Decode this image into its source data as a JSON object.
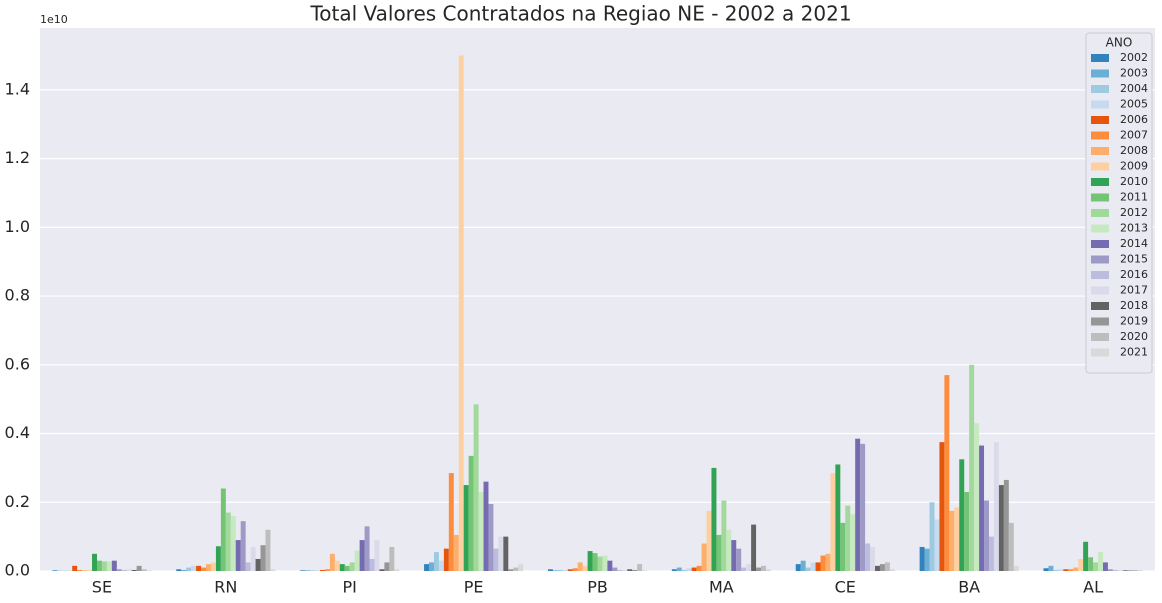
{
  "chart_data": {
    "type": "bar",
    "title": "Total Valores Contratados na Regiao NE - 2002 a 2021",
    "y_offset_label": "1e10",
    "legend_title": "ANO",
    "legend_corner": "upper right",
    "grid": true,
    "categories": [
      "SE",
      "RN",
      "PI",
      "PE",
      "PB",
      "MA",
      "CE",
      "BA",
      "AL"
    ],
    "ylim": [
      0,
      1.58
    ],
    "yticks": [
      {
        "value": 0,
        "label": "0.0"
      },
      0.2,
      0.4,
      0.6,
      0.8,
      {
        "value": 1,
        "label": "1.0"
      },
      1.2,
      1.4
    ],
    "series": [
      {
        "name": "2002",
        "color": "#3182bd",
        "values": [
          0.002,
          0.005,
          0.002,
          0.02,
          0.005,
          0.005,
          0.02,
          0.07,
          0.008
        ]
      },
      {
        "name": "2003",
        "color": "#6baed6",
        "values": [
          0.001,
          0.003,
          0.002,
          0.025,
          0.002,
          0.01,
          0.03,
          0.065,
          0.015
        ]
      },
      {
        "name": "2004",
        "color": "#9ecae1",
        "values": [
          0.001,
          0.01,
          0.002,
          0.055,
          0.003,
          0.003,
          0.01,
          0.2,
          0.003
        ]
      },
      {
        "name": "2005",
        "color": "#c6dbef",
        "values": [
          0.002,
          0.015,
          0.002,
          0.03,
          0.003,
          0.008,
          0.025,
          0.15,
          0.005
        ]
      },
      {
        "name": "2006",
        "color": "#e6550d",
        "values": [
          0.015,
          0.015,
          0.003,
          0.065,
          0.005,
          0.01,
          0.025,
          0.375,
          0.005
        ]
      },
      {
        "name": "2007",
        "color": "#fd8d3c",
        "values": [
          0.003,
          0.01,
          0.005,
          0.285,
          0.008,
          0.015,
          0.045,
          0.57,
          0.005
        ]
      },
      {
        "name": "2008",
        "color": "#fdae6b",
        "values": [
          0.002,
          0.02,
          0.05,
          0.105,
          0.025,
          0.08,
          0.05,
          0.175,
          0.01
        ]
      },
      {
        "name": "2009",
        "color": "#fdd0a2",
        "values": [
          0.003,
          0.025,
          0.03,
          1.5,
          0.015,
          0.175,
          0.285,
          0.185,
          0.035
        ]
      },
      {
        "name": "2010",
        "color": "#31a354",
        "values": [
          0.05,
          0.072,
          0.02,
          0.25,
          0.058,
          0.3,
          0.31,
          0.325,
          0.085
        ]
      },
      {
        "name": "2011",
        "color": "#74c476",
        "values": [
          0.03,
          0.24,
          0.015,
          0.335,
          0.052,
          0.105,
          0.14,
          0.23,
          0.04
        ]
      },
      {
        "name": "2012",
        "color": "#a1d99b",
        "values": [
          0.028,
          0.17,
          0.025,
          0.485,
          0.042,
          0.205,
          0.19,
          0.6,
          0.025
        ]
      },
      {
        "name": "2013",
        "color": "#c7e9c0",
        "values": [
          0.028,
          0.16,
          0.06,
          0.23,
          0.045,
          0.12,
          0.165,
          0.43,
          0.055
        ]
      },
      {
        "name": "2014",
        "color": "#756bb1",
        "values": [
          0.03,
          0.09,
          0.09,
          0.26,
          0.03,
          0.09,
          0.385,
          0.365,
          0.025
        ]
      },
      {
        "name": "2015",
        "color": "#9e9ac8",
        "values": [
          0.005,
          0.145,
          0.13,
          0.195,
          0.01,
          0.065,
          0.37,
          0.205,
          0.005
        ]
      },
      {
        "name": "2016",
        "color": "#bcbddc",
        "values": [
          0.003,
          0.025,
          0.035,
          0.065,
          0.003,
          0.01,
          0.08,
          0.1,
          0.003
        ]
      },
      {
        "name": "2017",
        "color": "#dadaeb",
        "values": [
          0.005,
          0.07,
          0.09,
          0.1,
          0.003,
          0.02,
          0.07,
          0.375,
          0.003
        ]
      },
      {
        "name": "2018",
        "color": "#636363",
        "values": [
          0.003,
          0.035,
          0.005,
          0.1,
          0.005,
          0.135,
          0.015,
          0.25,
          0.002
        ]
      },
      {
        "name": "2019",
        "color": "#969696",
        "values": [
          0.015,
          0.075,
          0.025,
          0.005,
          0.003,
          0.01,
          0.02,
          0.265,
          0.002
        ]
      },
      {
        "name": "2020",
        "color": "#bdbdbd",
        "values": [
          0.005,
          0.12,
          0.07,
          0.01,
          0.02,
          0.015,
          0.025,
          0.14,
          0.003
        ]
      },
      {
        "name": "2021",
        "color": "#d9d9d9",
        "values": [
          0.002,
          0.005,
          0.005,
          0.02,
          0.002,
          0.005,
          0.005,
          0.015,
          0.003
        ]
      }
    ]
  }
}
